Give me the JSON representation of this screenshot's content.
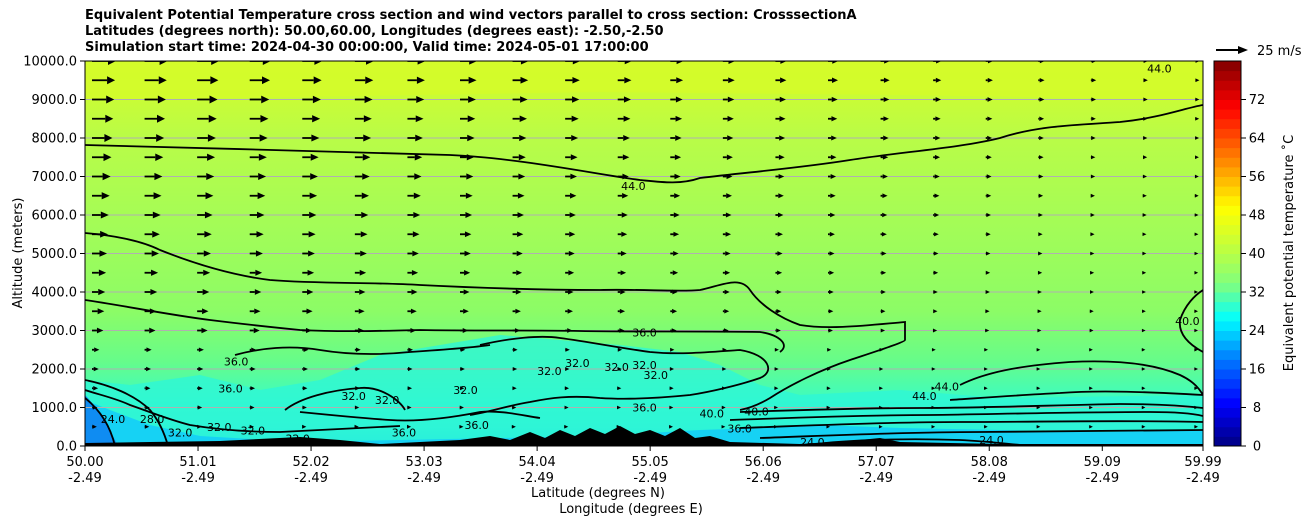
{
  "title": {
    "line1": "Equivalent Potential Temperature cross section and wind vectors parallel to cross section: CrosssectionA",
    "line2": "Latitudes (degrees north): 50.00,60.00, Longitudes (degrees east): -2.50,-2.50",
    "line3": "Simulation start time: 2024-04-30 00:00:00, Valid time: 2024-05-01 17:00:00"
  },
  "chart_data": {
    "type": "heatmap",
    "xlabel": "Latitude (degrees N)",
    "xlabel2": "Longitude (degrees E)",
    "ylabel": "Altitude (meters)",
    "x_ticks": [
      {
        "lat": "50.00",
        "lon": "-2.49"
      },
      {
        "lat": "51.01",
        "lon": "-2.49"
      },
      {
        "lat": "52.02",
        "lon": "-2.49"
      },
      {
        "lat": "53.03",
        "lon": "-2.49"
      },
      {
        "lat": "54.04",
        "lon": "-2.49"
      },
      {
        "lat": "55.05",
        "lon": "-2.49"
      },
      {
        "lat": "56.06",
        "lon": "-2.49"
      },
      {
        "lat": "57.07",
        "lon": "-2.49"
      },
      {
        "lat": "58.08",
        "lon": "-2.49"
      },
      {
        "lat": "59.09",
        "lon": "-2.49"
      },
      {
        "lat": "59.99",
        "lon": "-2.49"
      }
    ],
    "xlim": [
      50.0,
      59.99
    ],
    "y_ticks": [
      "0.0",
      "1000.0",
      "2000.0",
      "3000.0",
      "4000.0",
      "5000.0",
      "6000.0",
      "7000.0",
      "8000.0",
      "9000.0",
      "10000.0"
    ],
    "ylim": [
      0,
      10000
    ],
    "grid": "horizontal",
    "colorbar": {
      "label": "Equivalent potential temperature ˚C",
      "ticks": [
        "0",
        "8",
        "16",
        "24",
        "32",
        "40",
        "48",
        "56",
        "64",
        "72"
      ],
      "range": [
        0,
        80
      ]
    },
    "quiver_key": {
      "label": "25 m/s",
      "speed": 25
    },
    "contour_labels": [
      {
        "text": "44.0",
        "lat": 59.6,
        "alt": 9800
      },
      {
        "text": "44.0",
        "lat": 54.9,
        "alt": 6750
      },
      {
        "text": "40.0",
        "lat": 59.85,
        "alt": 3250
      },
      {
        "text": "36.0",
        "lat": 55.0,
        "alt": 2950
      },
      {
        "text": "36.0",
        "lat": 51.35,
        "alt": 2200
      },
      {
        "text": "36.0",
        "lat": 51.3,
        "alt": 1500
      },
      {
        "text": "32.0",
        "lat": 52.4,
        "alt": 1300
      },
      {
        "text": "32.0",
        "lat": 52.7,
        "alt": 1200
      },
      {
        "text": "32.0",
        "lat": 53.4,
        "alt": 1450
      },
      {
        "text": "32.0",
        "lat": 54.15,
        "alt": 1950
      },
      {
        "text": "32.0",
        "lat": 54.4,
        "alt": 2150
      },
      {
        "text": "32.0",
        "lat": 54.75,
        "alt": 2050
      },
      {
        "text": "32.0",
        "lat": 55.0,
        "alt": 2100
      },
      {
        "text": "32.0",
        "lat": 55.1,
        "alt": 1850
      },
      {
        "text": "36.0",
        "lat": 55.0,
        "alt": 1000
      },
      {
        "text": "36.0",
        "lat": 53.5,
        "alt": 550
      },
      {
        "text": "36.0",
        "lat": 52.85,
        "alt": 350
      },
      {
        "text": "32.0",
        "lat": 51.9,
        "alt": 200
      },
      {
        "text": "32.0",
        "lat": 51.2,
        "alt": 500
      },
      {
        "text": "32.0",
        "lat": 51.5,
        "alt": 400
      },
      {
        "text": "32.0",
        "lat": 50.85,
        "alt": 350
      },
      {
        "text": "28.0",
        "lat": 50.6,
        "alt": 700
      },
      {
        "text": "24.0",
        "lat": 50.25,
        "alt": 700
      },
      {
        "text": "40.0",
        "lat": 55.6,
        "alt": 850
      },
      {
        "text": "40.0",
        "lat": 56.0,
        "alt": 900
      },
      {
        "text": "36.0",
        "lat": 55.85,
        "alt": 450
      },
      {
        "text": "24.0",
        "lat": 56.5,
        "alt": 100
      },
      {
        "text": "44.0",
        "lat": 57.5,
        "alt": 1300
      },
      {
        "text": "44.0",
        "lat": 57.7,
        "alt": 1550
      },
      {
        "text": "24.0",
        "lat": 58.1,
        "alt": 150
      }
    ]
  }
}
